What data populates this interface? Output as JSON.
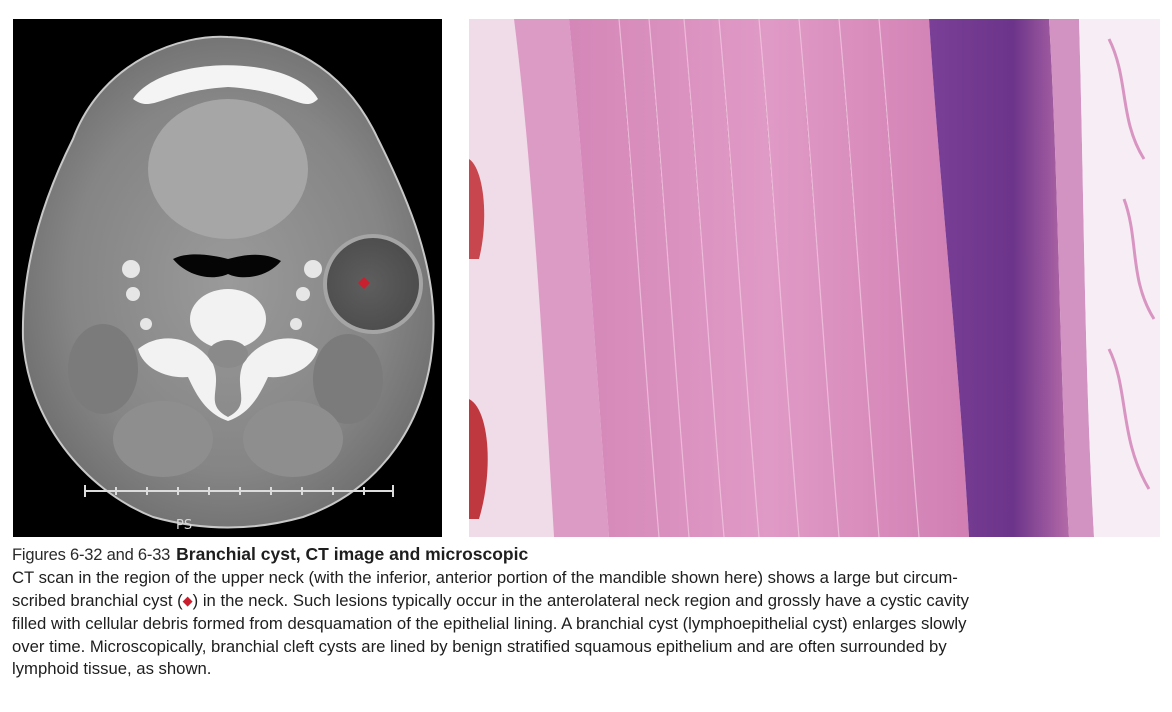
{
  "figures": {
    "ct_image": {
      "label": "PS",
      "marker_color": "#c8202e"
    },
    "micrograph": {
      "stain_color": "#d87fb5"
    }
  },
  "caption": {
    "figure_numbers": "Figures 6-32 and 6-33",
    "title": "Branchial cyst, CT image and microscopic",
    "body_line_1": "CT scan in the region of the upper neck (with the inferior, anterior portion of the mandible shown here) shows a large but circum-",
    "body_line_2_pre": "scribed branchial cyst (",
    "marker_symbol": "◆",
    "body_line_2_post": ") in the neck. Such lesions typically occur in the anterolateral neck region and grossly have a cystic cavity",
    "body_line_3": "filled with cellular debris formed from desquamation of the epithelial lining. A branchial cyst (lymphoepithelial cyst) enlarges slowly",
    "body_line_4": "over time. Microscopically, branchial cleft cysts are lined by benign stratified squamous epithelium and are often surrounded by",
    "body_line_5": "lymphoid tissue, as shown."
  }
}
